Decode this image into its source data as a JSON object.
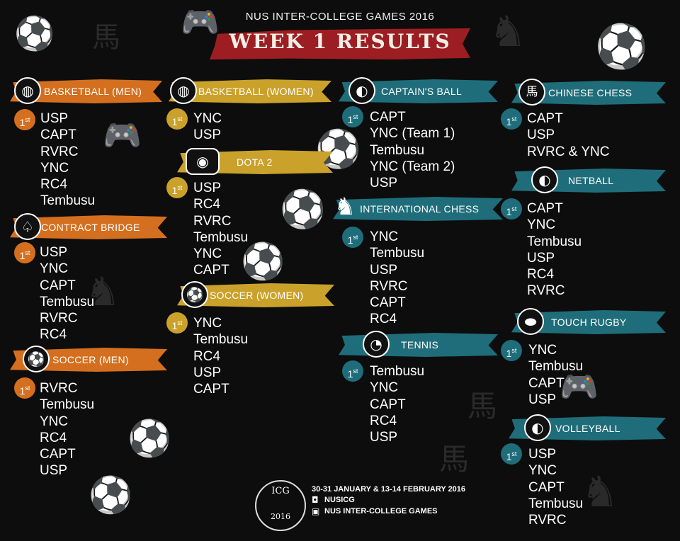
{
  "header": {
    "event_title": "NUS INTER-COLLEGE GAMES 2016",
    "week_title": "WEEK 1 RESULTS"
  },
  "rank_badge": {
    "num": "1",
    "suffix": "st"
  },
  "categories": {
    "basketball_men": {
      "label": "BASKETBALL (MEN)",
      "icon": "basketball-icon",
      "results": [
        "USP",
        "CAPT",
        "RVRC",
        "YNC",
        "RC4",
        "Tembusu"
      ]
    },
    "contract_bridge": {
      "label": "CONTRACT BRIDGE",
      "icon": "spade-icon",
      "results": [
        "USP",
        "YNC",
        "CAPT",
        "Tembusu",
        "RVRC",
        "RC4"
      ]
    },
    "soccer_men": {
      "label": "SOCCER (MEN)",
      "icon": "soccer-ball-icon",
      "results": [
        "RVRC",
        "Tembusu",
        "YNC",
        "RC4",
        "CAPT",
        "USP"
      ]
    },
    "basketball_women": {
      "label": "BASKETBALL (WOMEN)",
      "icon": "basketball-icon",
      "results": [
        "YNC",
        "USP"
      ]
    },
    "dota2": {
      "label": "DOTA 2",
      "icon": "gamepad-icon",
      "results": [
        "USP",
        "RC4",
        "RVRC",
        "Tembusu",
        "YNC",
        "CAPT"
      ]
    },
    "soccer_women": {
      "label": "SOCCER (WOMEN)",
      "icon": "soccer-ball-icon",
      "results": [
        "YNC",
        "Tembusu",
        "RC4",
        "USP",
        "CAPT"
      ]
    },
    "captains_ball": {
      "label": "CAPTAIN'S BALL",
      "icon": "volleyball-icon",
      "results": [
        "CAPT",
        "YNC (Team 1)",
        "Tembusu",
        "YNC (Team 2)",
        "USP"
      ]
    },
    "international_chess": {
      "label": "INTERNATIONAL CHESS",
      "icon": "chess-knight-icon",
      "results": [
        "YNC",
        "Tembusu",
        "USP",
        "RVRC",
        "CAPT",
        "RC4"
      ]
    },
    "tennis": {
      "label": "TENNIS",
      "icon": "tennis-ball-icon",
      "results": [
        "Tembusu",
        "YNC",
        "CAPT",
        "RC4",
        "USP"
      ]
    },
    "chinese_chess": {
      "label": "CHINESE CHESS",
      "icon": "chinese-chess-piece-icon",
      "glyph": "馬",
      "results": [
        "CAPT",
        "USP",
        "RVRC & YNC"
      ]
    },
    "netball": {
      "label": "NETBALL",
      "icon": "netball-icon",
      "results": [
        "CAPT",
        "YNC",
        "Tembusu",
        "USP",
        "RC4",
        "RVRC"
      ]
    },
    "touch_rugby": {
      "label": "TOUCH RUGBY",
      "icon": "rugby-ball-icon",
      "results": [
        "YNC",
        "Tembusu",
        "CAPT",
        "USP"
      ]
    },
    "volleyball": {
      "label": "VOLLEYBALL",
      "icon": "volleyball-icon",
      "results": [
        "USP",
        "YNC",
        "CAPT",
        "Tembusu",
        "RVRC"
      ]
    }
  },
  "footer": {
    "logo_top": "ICG",
    "logo_year": "2016",
    "dates": "30-31 JANUARY & 13-14 FEBRUARY 2016",
    "instagram_handle": "NUSICG",
    "facebook_page": "NUS INTER-COLLEGE GAMES"
  },
  "colors": {
    "orange": "#d46f1f",
    "yellow": "#caa12a",
    "teal": "#1f6d7a",
    "week_banner": "#9c1e22",
    "background": "#0d0d0d"
  }
}
